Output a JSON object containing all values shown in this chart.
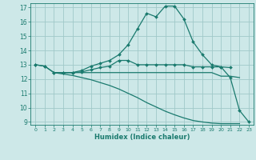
{
  "bg_color": "#cde8e8",
  "grid_color": "#a0c8c8",
  "line_color": "#1a7a6e",
  "xlabel": "Humidex (Indice chaleur)",
  "xlim": [
    -0.5,
    23.5
  ],
  "ylim": [
    8.8,
    17.3
  ],
  "yticks": [
    9,
    10,
    11,
    12,
    13,
    14,
    15,
    16,
    17
  ],
  "xticks": [
    0,
    1,
    2,
    3,
    4,
    5,
    6,
    7,
    8,
    9,
    10,
    11,
    12,
    13,
    14,
    15,
    16,
    17,
    18,
    19,
    20,
    21,
    22,
    23
  ],
  "lines": [
    {
      "x": [
        0,
        1,
        2,
        3,
        4,
        5,
        6,
        7,
        8,
        9,
        10,
        11,
        12,
        13,
        14,
        15,
        16,
        17,
        18,
        19,
        20,
        21
      ],
      "y": [
        13.0,
        12.9,
        12.45,
        12.45,
        12.45,
        12.5,
        12.65,
        12.8,
        12.9,
        13.3,
        13.3,
        13.0,
        13.0,
        13.0,
        13.0,
        13.0,
        13.0,
        12.85,
        12.85,
        12.85,
        12.85,
        12.8
      ],
      "marker": true
    },
    {
      "x": [
        0,
        1,
        2,
        3,
        4,
        5,
        6,
        7,
        8,
        9,
        10,
        11,
        12,
        13,
        14,
        15,
        16,
        17,
        18,
        19,
        20,
        21,
        22,
        23
      ],
      "y": [
        13.0,
        12.9,
        12.45,
        12.45,
        12.45,
        12.6,
        12.9,
        13.1,
        13.3,
        13.7,
        14.4,
        15.5,
        16.6,
        16.35,
        17.1,
        17.1,
        16.2,
        14.6,
        13.7,
        13.0,
        12.85,
        12.1,
        9.8,
        9.0
      ],
      "marker": true
    },
    {
      "x": [
        2,
        3,
        4,
        5,
        6,
        7,
        8,
        9,
        10,
        11,
        12,
        13,
        14,
        15,
        16,
        17,
        18,
        19,
        20,
        21,
        22
      ],
      "y": [
        12.45,
        12.45,
        12.45,
        12.45,
        12.45,
        12.45,
        12.45,
        12.45,
        12.45,
        12.45,
        12.45,
        12.45,
        12.45,
        12.45,
        12.45,
        12.45,
        12.45,
        12.45,
        12.2,
        12.2,
        12.1
      ],
      "marker": false
    },
    {
      "x": [
        2,
        3,
        4,
        5,
        6,
        7,
        8,
        9,
        10,
        11,
        12,
        13,
        14,
        15,
        16,
        17,
        18,
        19,
        20,
        21,
        22
      ],
      "y": [
        12.45,
        12.35,
        12.25,
        12.1,
        11.95,
        11.75,
        11.55,
        11.3,
        11.0,
        10.7,
        10.35,
        10.05,
        9.75,
        9.5,
        9.28,
        9.1,
        9.0,
        8.92,
        8.88,
        8.88,
        8.88
      ],
      "marker": false
    }
  ]
}
